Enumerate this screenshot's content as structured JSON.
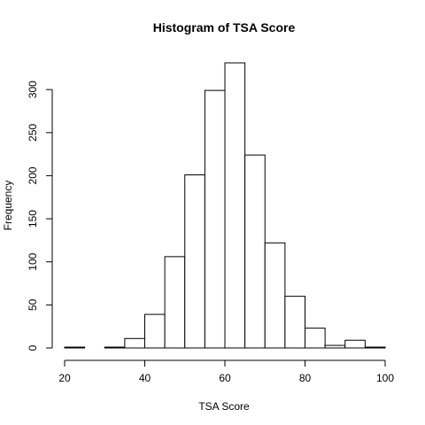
{
  "chart_data": {
    "type": "bar",
    "title": "Histogram of TSA Score",
    "xlabel": "TSA Score",
    "ylabel": "Frequency",
    "bin_edges": [
      20,
      25,
      30,
      35,
      40,
      45,
      50,
      55,
      60,
      65,
      70,
      75,
      80,
      85,
      90,
      95,
      100
    ],
    "values": [
      1,
      0,
      1,
      11,
      39,
      106,
      201,
      299,
      331,
      224,
      122,
      60,
      23,
      3,
      9,
      1
    ],
    "xlim": [
      20,
      100
    ],
    "ylim": [
      0,
      331
    ],
    "xticks": [
      20,
      40,
      60,
      80,
      100
    ],
    "yticks": [
      0,
      50,
      100,
      150,
      200,
      250,
      300
    ],
    "grid": false,
    "legend": "none",
    "colors": {
      "bar_fill": "#ffffff",
      "bar_stroke": "#000000"
    }
  }
}
